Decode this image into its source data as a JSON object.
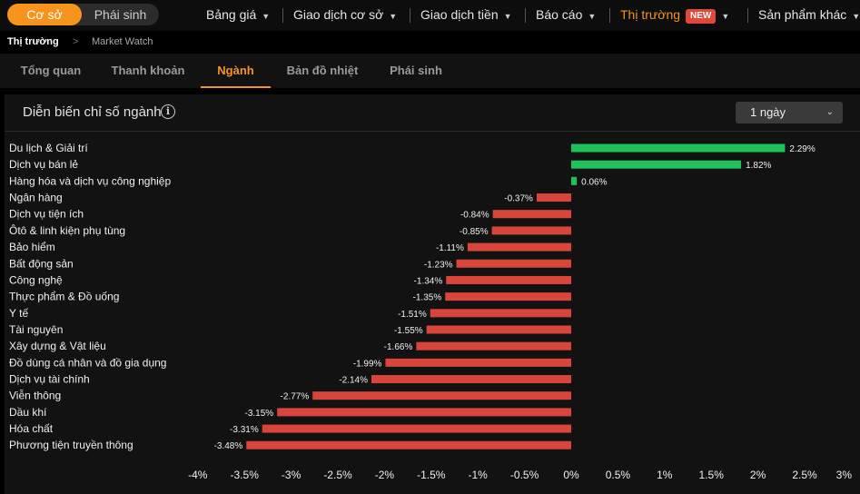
{
  "topnav": {
    "toggle": {
      "active": "Cơ sở",
      "inactive": "Phái sinh"
    },
    "menus": [
      {
        "label": "Bảng giá"
      },
      {
        "label": "Giao dịch cơ sở"
      },
      {
        "label": "Giao dịch tiền"
      },
      {
        "label": "Báo cáo"
      },
      {
        "label": "Thị trường",
        "badge": "NEW"
      },
      {
        "label": "Sản phẩm khác"
      }
    ]
  },
  "breadcrumb": {
    "current": "Thị trường",
    "separator": ">",
    "page": "Market Watch"
  },
  "tabs": [
    "Tổng quan",
    "Thanh khoản",
    "Ngành",
    "Bản đồ nhiệt",
    "Phái sinh"
  ],
  "panel": {
    "title": "Diễn biến chỉ số ngành",
    "info_icon": "info-icon",
    "period": "1 ngày"
  },
  "colors": {
    "accent": "#f7941d",
    "positive": "#1fc15a",
    "negative": "#d8463b"
  },
  "chart_data": {
    "type": "bar",
    "orientation": "horizontal",
    "categories": [
      "Du lịch & Giải trí",
      "Dịch vụ bán lẻ",
      "Hàng hóa và dịch vụ công nghiệp",
      "Ngân hàng",
      "Dịch vụ tiện ích",
      "Ôtô & linh kiện phụ tùng",
      "Bảo hiểm",
      "Bất động sản",
      "Công nghệ",
      "Thực phẩm & Đồ uống",
      "Y tế",
      "Tài nguyên",
      "Xây dựng & Vật liệu",
      "Đồ dùng cá nhân và đồ gia dụng",
      "Dịch vụ tài chính",
      "Viễn thông",
      "Dầu khí",
      "Hóa chất",
      "Phương tiện truyền thông"
    ],
    "values": [
      2.29,
      1.82,
      0.06,
      -0.37,
      -0.84,
      -0.85,
      -1.11,
      -1.23,
      -1.34,
      -1.35,
      -1.51,
      -1.55,
      -1.66,
      -1.99,
      -2.14,
      -2.77,
      -3.15,
      -3.31,
      -3.48
    ],
    "value_labels": [
      "2.29%",
      "1.82%",
      "0.06%",
      "-0.37%",
      "-0.84%",
      "-0.85%",
      "-1.11%",
      "-1.23%",
      "-1.34%",
      "-1.35%",
      "-1.51%",
      "-1.55%",
      "-1.66%",
      "-1.99%",
      "-2.14%",
      "-2.77%",
      "-3.15%",
      "-3.31%",
      "-3.48%"
    ],
    "xlim": [
      -4,
      3
    ],
    "xticks": [
      -4,
      -3.5,
      -3,
      -2.5,
      -2,
      -1.5,
      -1,
      -0.5,
      0,
      0.5,
      1,
      1.5,
      2,
      2.5,
      3
    ],
    "xtick_labels": [
      "-4%",
      "-3.5%",
      "-3%",
      "-2.5%",
      "-2%",
      "-1.5%",
      "-1%",
      "-0.5%",
      "0%",
      "0.5%",
      "1%",
      "1.5%",
      "2%",
      "2.5%",
      "3%"
    ],
    "grid": false
  }
}
